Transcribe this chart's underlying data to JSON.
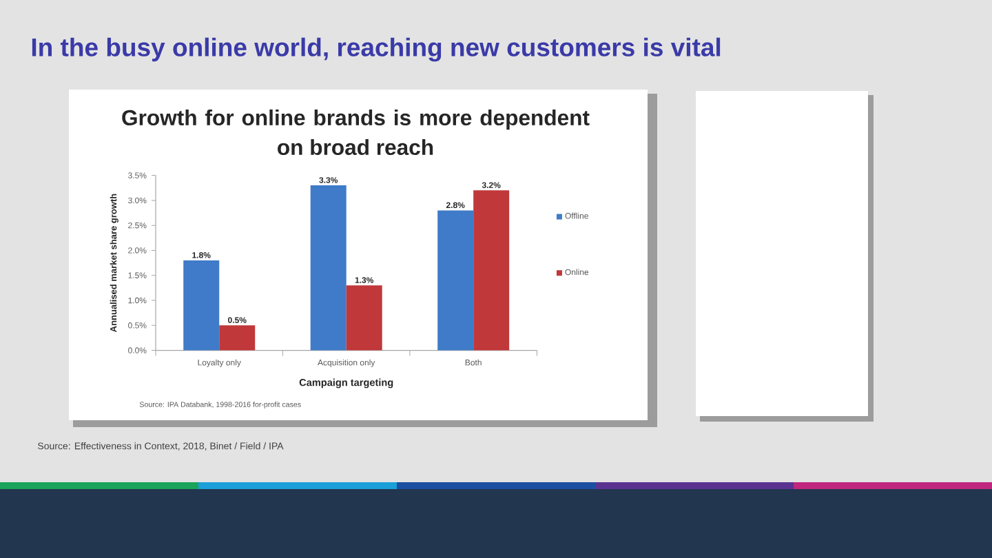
{
  "chart_data": {
    "type": "bar",
    "title": "In the busy online world, reaching new customers is vital",
    "subtitle": "Growth for online brands is more dependent on broad reach",
    "xlabel": "Campaign targeting",
    "ylabel": "Annualised market share growth",
    "categories": [
      "Loyalty only",
      "Acquisition only",
      "Both"
    ],
    "series": [
      {
        "name": "Offline",
        "color": "#3f7bc8",
        "values": [
          1.8,
          3.3,
          2.8
        ],
        "value_labels": [
          "1.8%",
          "3.3%",
          "2.8%"
        ]
      },
      {
        "name": "Online",
        "color": "#c1383a",
        "values": [
          0.5,
          1.3,
          3.2
        ],
        "value_labels": [
          "0.5%",
          "1.3%",
          "3.2%"
        ]
      }
    ],
    "ylim": [
      0,
      3.5
    ],
    "yticks": [
      {
        "value": 0,
        "label": "0.0%"
      },
      {
        "value": 0.5,
        "label": "0.5%"
      },
      {
        "value": 1,
        "label": "1.0%"
      },
      {
        "value": 1.5,
        "label": "1.5%"
      },
      {
        "value": 2,
        "label": "2.0%"
      },
      {
        "value": 2.5,
        "label": "2.5%"
      },
      {
        "value": 3,
        "label": "3.0%"
      },
      {
        "value": 3.5,
        "label": "3.5%"
      }
    ],
    "legend": "right",
    "annotations": [
      "Source: IPA Databank, 1998-2016 for-profit cases",
      "Source: Effectiveness in Context, 2018, Binet / Field / IPA"
    ]
  }
}
